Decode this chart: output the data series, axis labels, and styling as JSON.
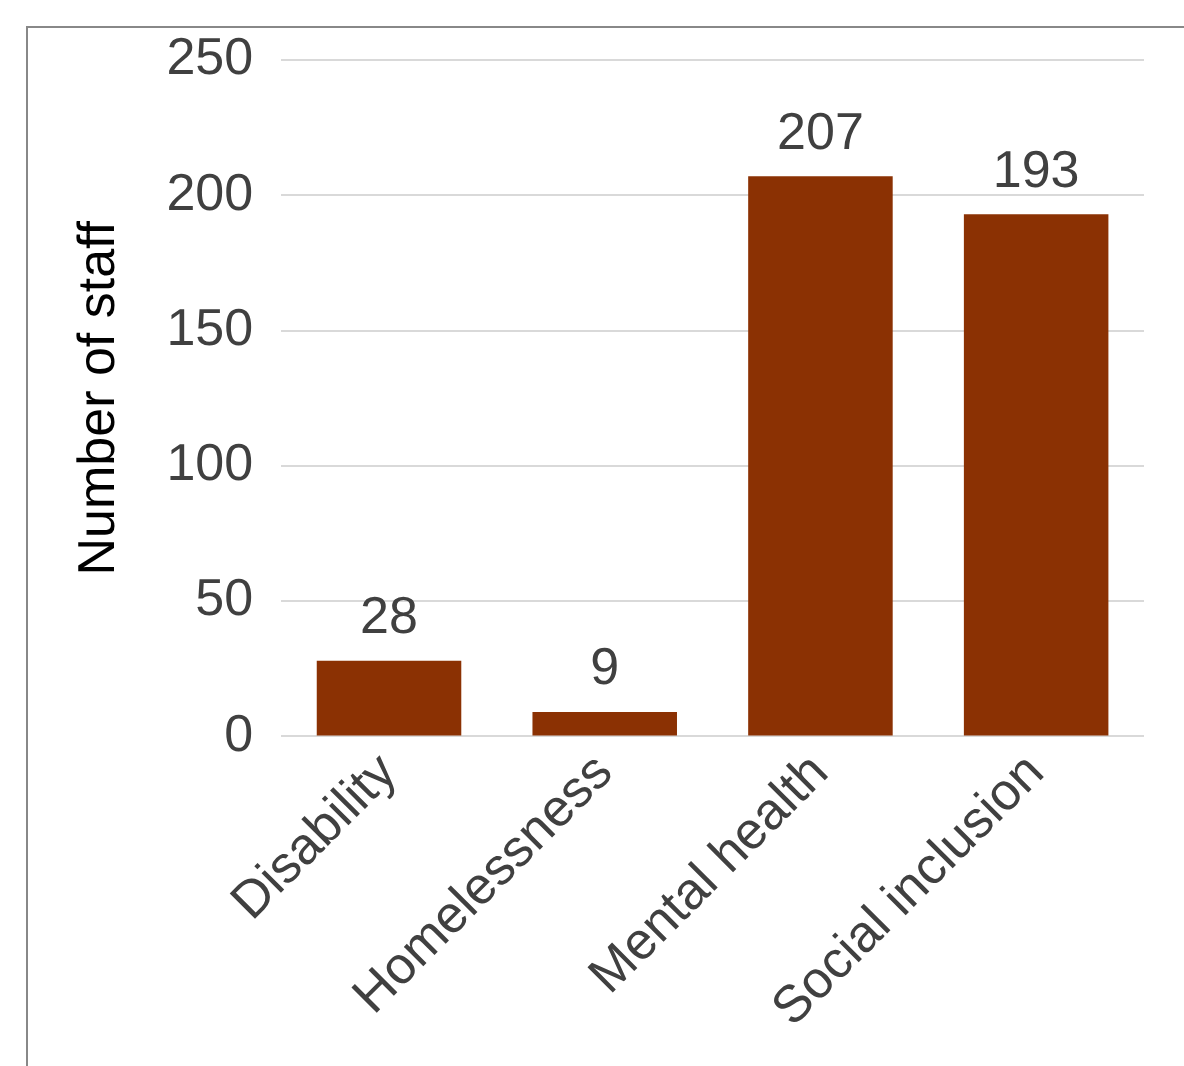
{
  "chart_data": {
    "type": "bar",
    "ylabel": "Number of staff",
    "categories": [
      "Disability",
      "Homelessness",
      "Mental health",
      "Social inclusion"
    ],
    "values": [
      28,
      9,
      207,
      193
    ],
    "color": "#8b3103",
    "ylim": [
      0,
      250
    ],
    "yticks": [
      0,
      50,
      100,
      150,
      200,
      250
    ],
    "grid": "y",
    "data_labels": true,
    "legend": false
  }
}
